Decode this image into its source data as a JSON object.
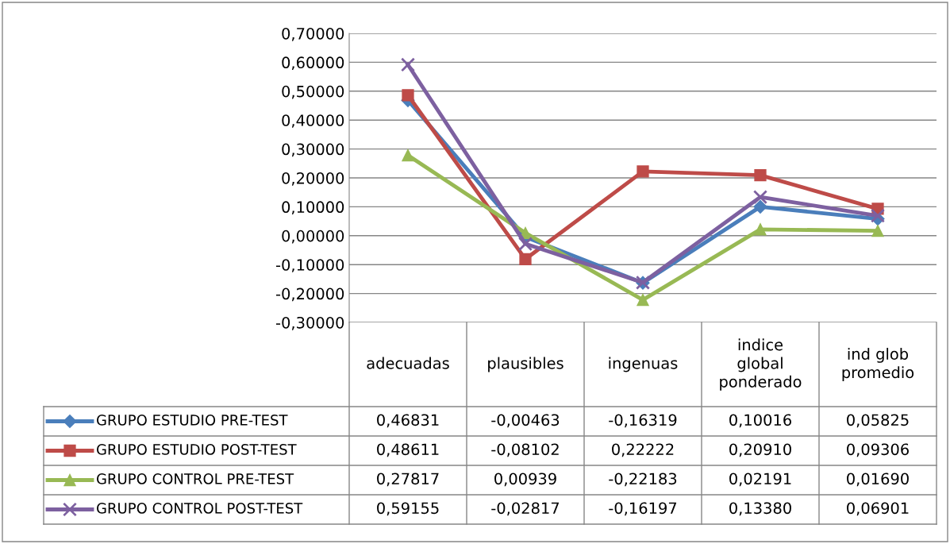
{
  "chart_data": {
    "type": "line",
    "categories": [
      "adecuadas",
      "plausibles",
      "ingenuas",
      "indice\nglobal\nponderado",
      "ind glob\npromedio"
    ],
    "series": [
      {
        "name": "GRUPO ESTUDIO PRE-TEST",
        "color": "#4a7ebb",
        "marker": "diamond",
        "values": [
          0.46831,
          -0.00463,
          -0.16319,
          0.10016,
          0.05825
        ],
        "value_labels": [
          "0,46831",
          "-0,00463",
          "-0,16319",
          "0,10016",
          "0,05825"
        ]
      },
      {
        "name": "GRUPO ESTUDIO POST-TEST",
        "color": "#be4b48",
        "marker": "square",
        "values": [
          0.48611,
          -0.08102,
          0.22222,
          0.2091,
          0.09306
        ],
        "value_labels": [
          "0,48611",
          "-0,08102",
          "0,22222",
          "0,20910",
          "0,09306"
        ]
      },
      {
        "name": "GRUPO CONTROL PRE-TEST",
        "color": "#98b954",
        "marker": "triangle",
        "values": [
          0.27817,
          0.00939,
          -0.22183,
          0.02191,
          0.0169
        ],
        "value_labels": [
          "0,27817",
          "0,00939",
          "-0,22183",
          "0,02191",
          "0,01690"
        ]
      },
      {
        "name": "GRUPO CONTROL POST-TEST",
        "color": "#7d60a0",
        "marker": "cross",
        "values": [
          0.59155,
          -0.02817,
          -0.16197,
          0.1338,
          0.06901
        ],
        "value_labels": [
          "0,59155",
          "-0,02817",
          "-0,16197",
          "0,13380",
          "0,06901"
        ]
      }
    ],
    "ylim": [
      -0.3,
      0.7
    ],
    "yticks": [
      {
        "value": -0.3,
        "label": "-0,30000"
      },
      {
        "value": -0.2,
        "label": "-0,20000"
      },
      {
        "value": -0.1,
        "label": "-0,10000"
      },
      {
        "value": 0,
        "label": "0,00000"
      },
      {
        "value": 0.1,
        "label": "0,10000"
      },
      {
        "value": 0.2,
        "label": "0,20000"
      },
      {
        "value": 0.3,
        "label": "0,30000"
      },
      {
        "value": 0.4,
        "label": "0,40000"
      },
      {
        "value": 0.5,
        "label": "0,50000"
      },
      {
        "value": 0.6,
        "label": "0,60000"
      },
      {
        "value": 0.7,
        "label": "0,70000"
      }
    ],
    "grid": "y",
    "legend": "bottom"
  }
}
